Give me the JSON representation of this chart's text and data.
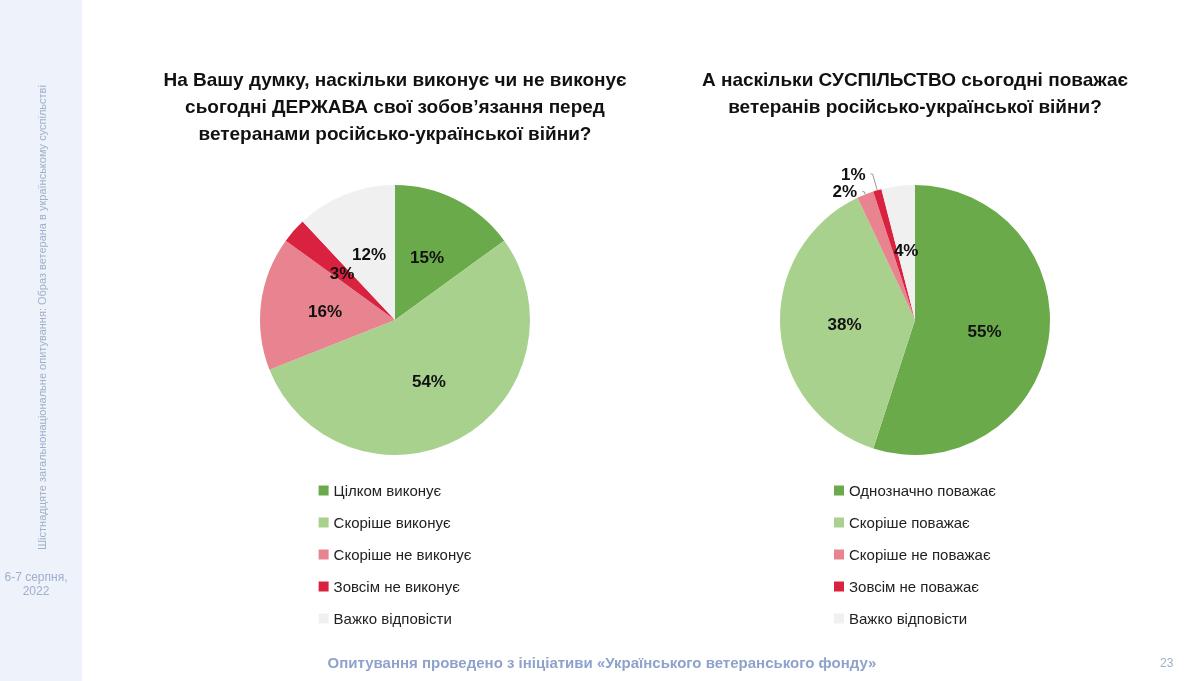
{
  "chart_data": [
    {
      "type": "pie",
      "title": "На Вашу думку, наскільки виконує чи не виконує сьогодні ДЕРЖАВА свої зобов’язання перед ветеранами російсько-української війни?",
      "categories": [
        "Цілком виконує",
        "Скоріше виконує",
        "Скоріше не виконує",
        "Зовсім не виконує",
        "Важко відповісти"
      ],
      "values": [
        15,
        54,
        16,
        3,
        12
      ],
      "value_labels": [
        "15%",
        "54%",
        "16%",
        "3%",
        "12%"
      ],
      "colors": [
        "#6aaa4b",
        "#a9d18e",
        "#e8848f",
        "#d9223f",
        "#f0f0f0"
      ],
      "legend": "bottom",
      "annotations": [
        "Шістнадцяте загальнонаціональне опитування: Образ ветерана в українському суспільстві",
        "6-7 серпня, 2022"
      ]
    },
    {
      "type": "pie",
      "title": "А наскільки СУСПІЛЬСТВО сьогодні поважає ветеранів російсько-української війни?",
      "categories": [
        "Однозначно поважає",
        "Скоріше поважає",
        "Скоріше не поважає",
        "Зовсім не поважає",
        "Важко відповісти"
      ],
      "values": [
        55,
        38,
        2,
        1,
        4
      ],
      "value_labels": [
        "55%",
        "38%",
        "2%",
        "1%",
        "4%"
      ],
      "colors": [
        "#6aaa4b",
        "#a9d18e",
        "#e8848f",
        "#d9223f",
        "#f0f0f0"
      ],
      "legend": "bottom",
      "annotations": [
        "Опитування проведено з ініціативи «Українського ветеранського фонду»",
        "23"
      ]
    }
  ]
}
